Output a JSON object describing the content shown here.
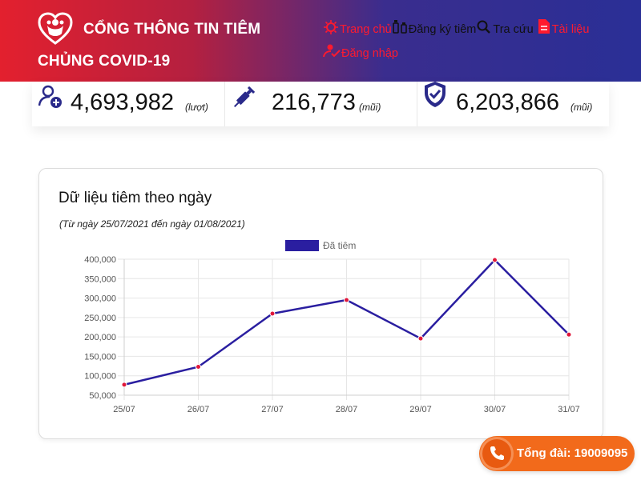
{
  "header": {
    "brand_line1": "CỔNG THÔNG TIN TIÊM",
    "brand_line2": "CHỦNG COVID-19",
    "nav": [
      {
        "label": "Trang chủ",
        "icon": "virus-icon",
        "color": "#ff1a2e"
      },
      {
        "label": "Đăng ký tiêm",
        "icon": "syringe-vial-icon",
        "color": "#111111"
      },
      {
        "label": "Tra cứu",
        "icon": "search-icon",
        "color": "#111111"
      },
      {
        "label": "Tài liệu",
        "icon": "document-icon",
        "color": "#ff1a2e"
      },
      {
        "label": "Đăng nhập",
        "icon": "login-user-icon",
        "color": "#ff1a2e"
      }
    ]
  },
  "stats": [
    {
      "value": "4,693,982",
      "unit": "(lượt)",
      "icon": "user-add-icon"
    },
    {
      "value": "216,773",
      "unit": "(mũi)",
      "icon": "syringe-icon"
    },
    {
      "value": "6,203,866",
      "unit": "(mũi)",
      "icon": "shield-check-icon"
    }
  ],
  "card": {
    "title": "Dữ liệu tiêm theo ngày",
    "subtitle": "(Từ ngày 25/07/2021 đến ngày 01/08/2021)"
  },
  "chart_data": {
    "type": "line",
    "categories": [
      "25/07",
      "26/07",
      "27/07",
      "28/07",
      "29/07",
      "30/07",
      "31/07"
    ],
    "series": [
      {
        "name": "Đã tiêm",
        "values": [
          77000,
          123000,
          260000,
          295000,
          196000,
          398000,
          206000
        ],
        "color": "#2a1ea0",
        "point_color": "#e0173a"
      }
    ],
    "y_ticks": [
      "50,000",
      "100,000",
      "150,000",
      "200,000",
      "250,000",
      "300,000",
      "350,000",
      "400,000"
    ],
    "ylim": [
      50000,
      400000
    ],
    "grid": true,
    "legend": "top-center"
  },
  "hotline": {
    "label": "Tổng đài: 19009095",
    "icon": "phone-icon"
  }
}
